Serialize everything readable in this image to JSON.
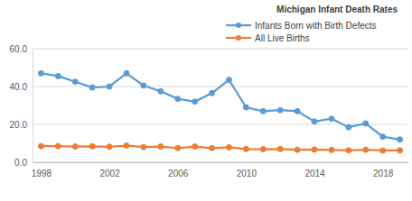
{
  "chart_data": {
    "type": "line",
    "title": "Michigan Infant Death Rates",
    "x": [
      1998,
      1999,
      2000,
      2001,
      2002,
      2003,
      2004,
      2005,
      2006,
      2007,
      2008,
      2009,
      2010,
      2011,
      2012,
      2013,
      2014,
      2015,
      2016,
      2017,
      2018,
      2019
    ],
    "series": [
      {
        "name": "Infants Born with Birth Defects",
        "color": "#5b9bd5",
        "marker": "circle",
        "line_style": "solid",
        "values": [
          47.0,
          45.5,
          42.5,
          39.5,
          40.0,
          47.0,
          40.5,
          37.5,
          33.5,
          32.0,
          36.5,
          43.5,
          29.0,
          27.0,
          27.5,
          27.0,
          21.5,
          23.0,
          18.5,
          20.5,
          13.5,
          12.0
        ]
      },
      {
        "name": "All Live Births",
        "color": "#ed7d31",
        "marker": "circle",
        "line_style": "solid",
        "values": [
          8.5,
          8.5,
          8.3,
          8.4,
          8.2,
          8.8,
          8.0,
          8.3,
          7.5,
          8.3,
          7.5,
          7.9,
          7.0,
          6.9,
          7.0,
          6.6,
          6.7,
          6.5,
          6.3,
          6.6,
          6.2,
          6.3
        ]
      }
    ],
    "xlim": [
      1997.5,
      2019.5
    ],
    "xticks": [
      1998,
      2002,
      2006,
      2010,
      2014,
      2018
    ],
    "ylim": [
      0,
      60
    ],
    "yticks": [
      {
        "value": 0,
        "label": "0.0"
      },
      {
        "value": 20,
        "label": "20.0"
      },
      {
        "value": 40,
        "label": "40.0"
      },
      {
        "value": 60,
        "label": "60.0"
      }
    ],
    "grid": true,
    "legend": "top"
  }
}
